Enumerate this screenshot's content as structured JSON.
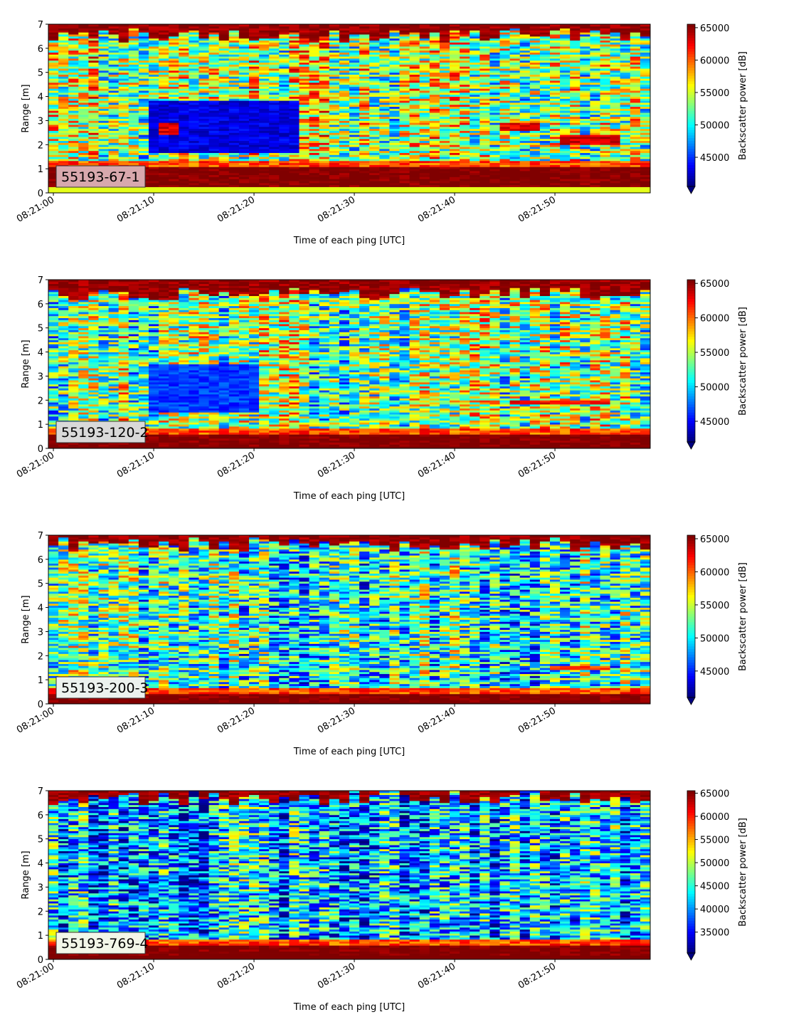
{
  "chart_data": [
    {
      "type": "heatmap",
      "label": "55193-67-1",
      "label_box_color": "#d8a8ad",
      "xlabel": "Time of each ping [UTC]",
      "ylabel": "Range [m]",
      "xticks": [
        "08:21:00",
        "08:21:10",
        "08:21:20",
        "08:21:30",
        "08:21:40",
        "08:21:50"
      ],
      "x_range_seconds": [
        -0.5,
        59.5
      ],
      "ylim": [
        0,
        7
      ],
      "yticks": [
        "0",
        "1",
        "2",
        "3",
        "4",
        "5",
        "6",
        "7"
      ],
      "colorbar_label": "Backscatter power [dB]",
      "colorbar_ticks": [
        "45000",
        "50000",
        "55000",
        "60000",
        "65000"
      ],
      "clim": [
        40500,
        65535
      ],
      "colormap": "jet",
      "colorbar_extend": "min",
      "near_band_m": [
        0.25,
        1.1
      ],
      "surface_band_m": [
        6.4,
        7.0
      ],
      "features": [
        {
          "description": "low backscatter patch",
          "t_start": 10,
          "t_end": 24,
          "r_min": 1.7,
          "r_max": 3.8,
          "level": 0.1
        },
        {
          "description": "strong layer",
          "t_start": 45,
          "t_end": 48,
          "r_min": 2.6,
          "r_max": 2.9,
          "level": 0.9
        },
        {
          "description": "strong layer",
          "t_start": 51,
          "t_end": 56,
          "r_min": 2.0,
          "r_max": 2.4,
          "level": 0.92
        },
        {
          "description": "strong patch",
          "t_start": 11,
          "t_end": 12,
          "r_min": 2.4,
          "r_max": 2.9,
          "level": 0.9
        }
      ],
      "mean_level": 0.55
    },
    {
      "type": "heatmap",
      "label": "55193-120-2",
      "label_box_color": "#d9d9d9",
      "xlabel": "Time of each ping [UTC]",
      "ylabel": "Range [m]",
      "xticks": [
        "08:21:00",
        "08:21:10",
        "08:21:20",
        "08:21:30",
        "08:21:40",
        "08:21:50"
      ],
      "x_range_seconds": [
        -0.5,
        59.5
      ],
      "ylim": [
        0,
        7
      ],
      "yticks": [
        "0",
        "1",
        "2",
        "3",
        "4",
        "5",
        "6",
        "7"
      ],
      "colorbar_label": "Backscatter power [dB]",
      "colorbar_ticks": [
        "45000",
        "50000",
        "55000",
        "60000",
        "65000"
      ],
      "clim": [
        42000,
        65535
      ],
      "colormap": "jet",
      "colorbar_extend": "min",
      "near_band_m": [
        0.1,
        0.55
      ],
      "surface_band_m": [
        6.3,
        7.0
      ],
      "features": [
        {
          "description": "low backscatter patch",
          "t_start": 10,
          "t_end": 20,
          "r_min": 1.5,
          "r_max": 3.5,
          "level": 0.18
        },
        {
          "description": "strong layer",
          "t_start": 46,
          "t_end": 55,
          "r_min": 1.8,
          "r_max": 2.0,
          "level": 0.88
        }
      ],
      "mean_level": 0.5
    },
    {
      "type": "heatmap",
      "label": "55193-200-3",
      "label_box_color": "#ecf2ee",
      "xlabel": "Time of each ping [UTC]",
      "ylabel": "Range [m]",
      "xticks": [
        "08:21:00",
        "08:21:10",
        "08:21:20",
        "08:21:30",
        "08:21:40",
        "08:21:50"
      ],
      "x_range_seconds": [
        -0.5,
        59.5
      ],
      "ylim": [
        0,
        7
      ],
      "yticks": [
        "0",
        "1",
        "2",
        "3",
        "4",
        "5",
        "6",
        "7"
      ],
      "colorbar_label": "Backscatter power [dB]",
      "colorbar_ticks": [
        "45000",
        "50000",
        "55000",
        "60000",
        "65000"
      ],
      "clim": [
        41000,
        65535
      ],
      "colormap": "jet",
      "colorbar_extend": "min",
      "near_band_m": [
        0.1,
        0.4
      ],
      "surface_band_m": [
        6.5,
        7.0
      ],
      "features": [
        {
          "description": "strong layer",
          "t_start": 50,
          "t_end": 55,
          "r_min": 1.4,
          "r_max": 1.6,
          "level": 0.8
        }
      ],
      "mean_level": 0.42
    },
    {
      "type": "heatmap",
      "label": "55193-769-4",
      "label_box_color": "#f2f6e8",
      "xlabel": "Time of each ping [UTC]",
      "ylabel": "Range [m]",
      "xticks": [
        "08:21:00",
        "08:21:10",
        "08:21:20",
        "08:21:30",
        "08:21:40",
        "08:21:50"
      ],
      "x_range_seconds": [
        -0.5,
        59.5
      ],
      "ylim": [
        0,
        7
      ],
      "yticks": [
        "0",
        "1",
        "2",
        "3",
        "4",
        "5",
        "6",
        "7"
      ],
      "colorbar_label": "Backscatter power [dB]",
      "colorbar_ticks": [
        "35000",
        "40000",
        "45000",
        "50000",
        "55000",
        "60000",
        "65000"
      ],
      "clim": [
        30500,
        65535
      ],
      "colormap": "jet",
      "colorbar_extend": "min",
      "near_band_m": [
        0.15,
        0.6
      ],
      "surface_band_m": [
        6.6,
        7.0
      ],
      "features": [],
      "mean_level": 0.3
    }
  ]
}
